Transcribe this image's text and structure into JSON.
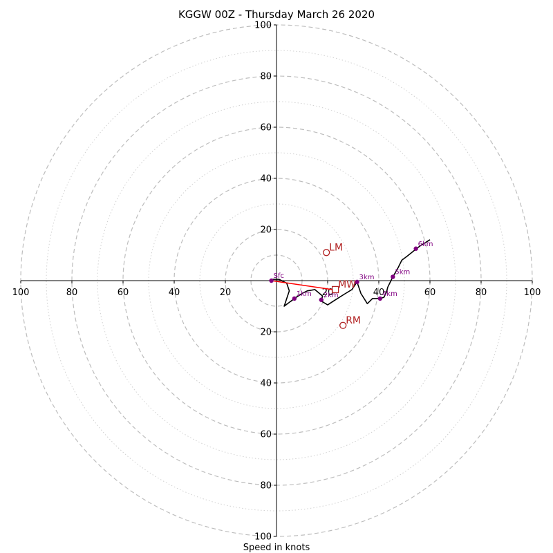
{
  "chart_data": {
    "type": "scatter",
    "title": "KGGW 00Z - Thursday March 26 2020",
    "xlabel": "Speed in knots",
    "ylabel": "",
    "xlim": [
      -100,
      100
    ],
    "ylim": [
      -100,
      100
    ],
    "grid": true,
    "rings": {
      "dashed": [
        10,
        20,
        40,
        60,
        80,
        100
      ],
      "dotted": [
        30,
        50,
        70,
        90
      ]
    },
    "tick_values": [
      20,
      40,
      60,
      80,
      100
    ],
    "tick_labels": [
      "20",
      "40",
      "60",
      "80",
      "100"
    ],
    "hodograph": {
      "color": "#000000",
      "points": [
        {
          "x": -2,
          "y": 0.5
        },
        {
          "x": 1,
          "y": 0.5
        },
        {
          "x": 4,
          "y": -1
        },
        {
          "x": 5,
          "y": -4
        },
        {
          "x": 3,
          "y": -10
        },
        {
          "x": 7,
          "y": -7
        },
        {
          "x": 10,
          "y": -5
        },
        {
          "x": 12,
          "y": -4
        },
        {
          "x": 15,
          "y": -3.5
        },
        {
          "x": 18,
          "y": -6
        },
        {
          "x": 17.5,
          "y": -8
        },
        {
          "x": 20,
          "y": -9.5
        },
        {
          "x": 23,
          "y": -7.5
        },
        {
          "x": 27,
          "y": -5
        },
        {
          "x": 29.5,
          "y": -3.5
        },
        {
          "x": 31.5,
          "y": -0.5
        },
        {
          "x": 33,
          "y": -5
        },
        {
          "x": 35.5,
          "y": -9
        },
        {
          "x": 37.5,
          "y": -7
        },
        {
          "x": 39.5,
          "y": -7
        },
        {
          "x": 40.5,
          "y": -7
        },
        {
          "x": 42,
          "y": -6.5
        },
        {
          "x": 43,
          "y": -4.5
        },
        {
          "x": 43.5,
          "y": -2.5
        },
        {
          "x": 45.5,
          "y": 1.5
        },
        {
          "x": 47.5,
          "y": 5
        },
        {
          "x": 49,
          "y": 8
        },
        {
          "x": 51,
          "y": 9.5
        },
        {
          "x": 53.5,
          "y": 11.5
        },
        {
          "x": 56,
          "y": 13.5
        },
        {
          "x": 60,
          "y": 16
        }
      ]
    },
    "height_markers": {
      "color": "#800080",
      "points": [
        {
          "x": -2,
          "y": 0,
          "label": "Sfc"
        },
        {
          "x": 7,
          "y": -7,
          "label": "1km"
        },
        {
          "x": 17.5,
          "y": -7.5,
          "label": "2km"
        },
        {
          "x": 31.5,
          "y": -0.5,
          "label": "3km"
        },
        {
          "x": 40.5,
          "y": -7,
          "label": "4km"
        },
        {
          "x": 45.5,
          "y": 1.5,
          "label": "5km"
        },
        {
          "x": 54.5,
          "y": 12.5,
          "label": "6km"
        }
      ]
    },
    "storm_motion": {
      "color": "#b22222",
      "points": [
        {
          "x": 19.5,
          "y": 11,
          "label": "LM",
          "marker": "circle"
        },
        {
          "x": 26,
          "y": -17.5,
          "label": "RM",
          "marker": "circle"
        },
        {
          "x": 23,
          "y": -3.5,
          "label": "MW",
          "marker": "square"
        }
      ],
      "shear_line": {
        "from": {
          "x": -2,
          "y": 0
        },
        "to": {
          "x": 22,
          "y": -3.5
        },
        "color": "#ff0000"
      }
    }
  }
}
